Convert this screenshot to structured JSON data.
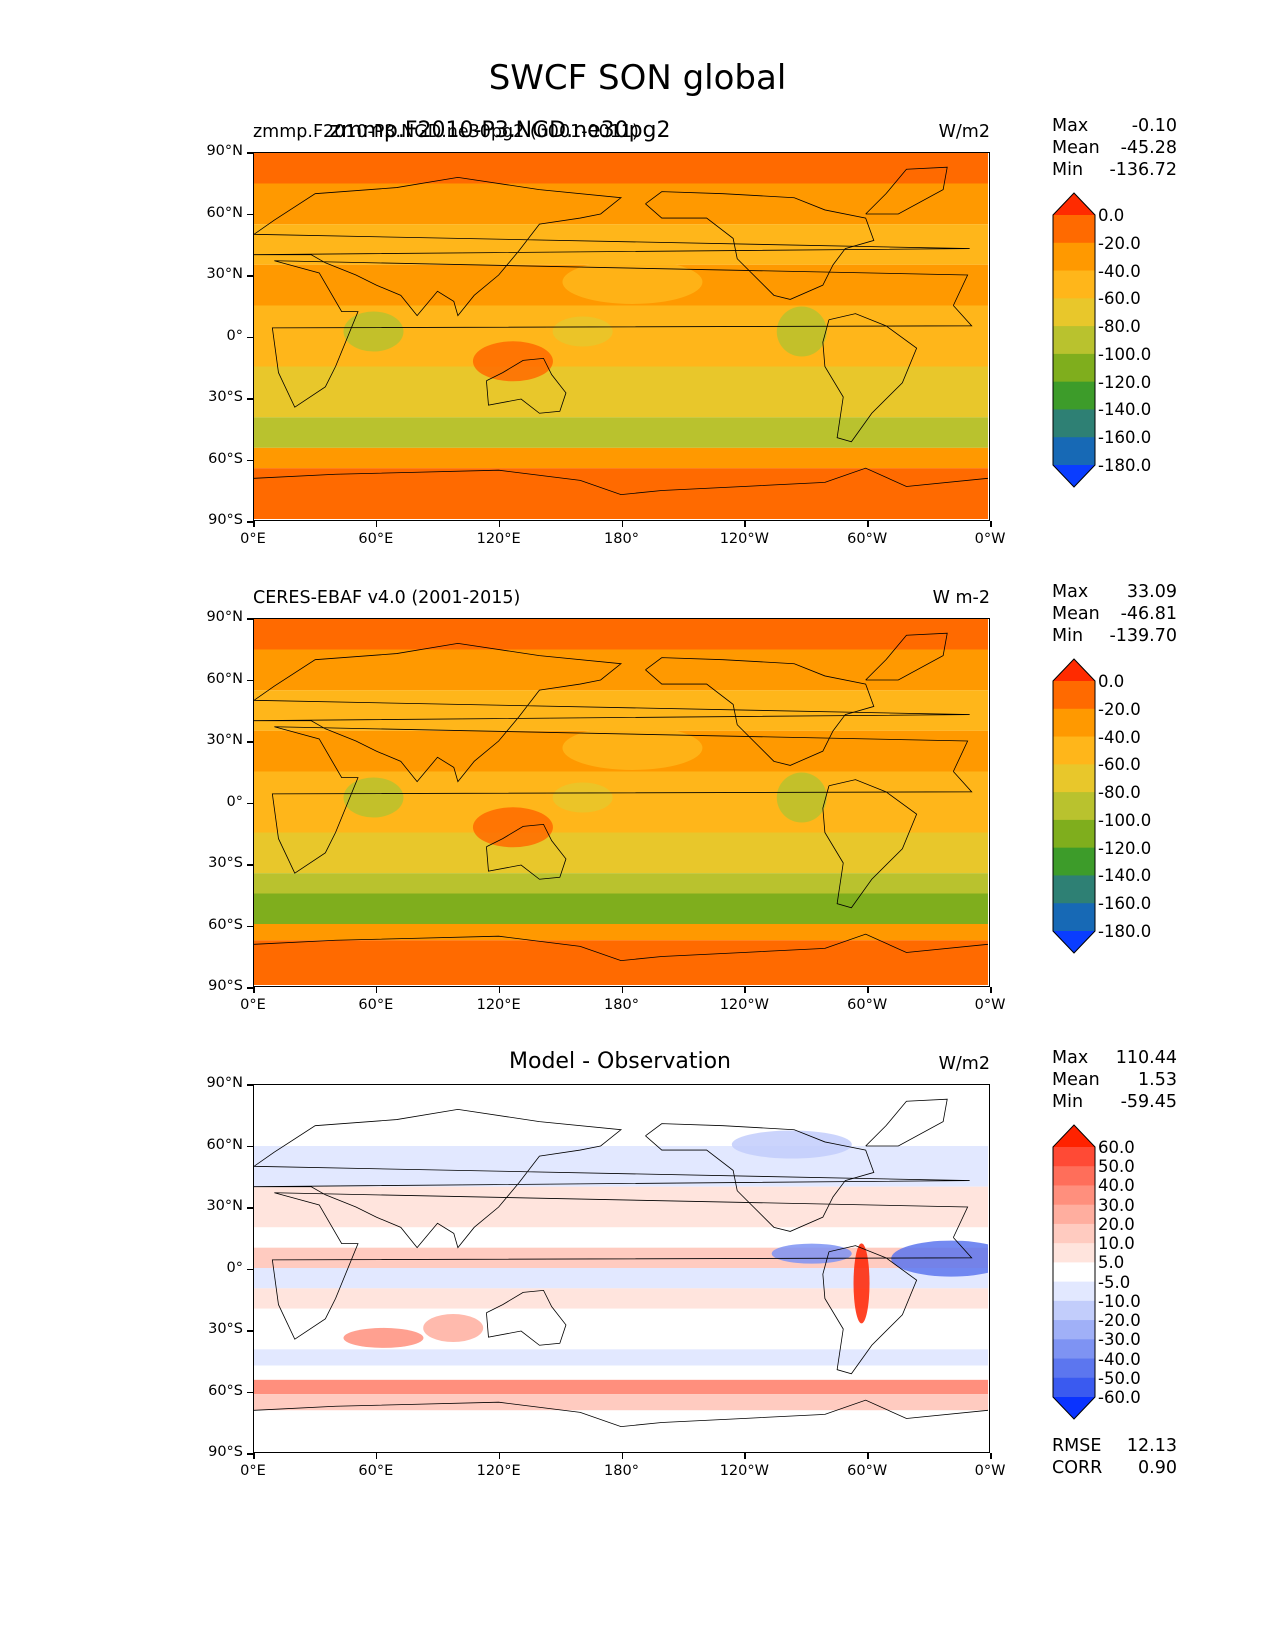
{
  "figure": {
    "title": "SWCF SON global"
  },
  "axes": {
    "lat_ticks": [
      "90°N",
      "60°N",
      "30°N",
      "0°",
      "30°S",
      "60°S",
      "90°S"
    ],
    "lon_ticks": [
      "0°E",
      "60°E",
      "120°E",
      "180°",
      "120°W",
      "60°W",
      "0°W"
    ]
  },
  "panels": [
    {
      "left_title": "zmmp.F2010-P3.NGD.ne30pg2 (0001-0011)",
      "center_title": "zmmp.F2010-P3.NGD.ne30pg2",
      "units": "W/m2",
      "stats": [
        {
          "label": "Max",
          "value": "-0.10"
        },
        {
          "label": "Mean",
          "value": "-45.28"
        },
        {
          "label": "Min",
          "value": "-136.72"
        }
      ],
      "colorbar": {
        "labels": [
          "0.0",
          "-20.0",
          "-40.0",
          "-60.0",
          "-80.0",
          "-100.0",
          "-120.0",
          "-140.0",
          "-160.0",
          "-180.0"
        ],
        "colors": [
          "#ff2b00",
          "#ff6a00",
          "#ff9900",
          "#ffb61a",
          "#e8c72b",
          "#b9c22e",
          "#7fae1d",
          "#3d9c2a",
          "#2e8074",
          "#1769b5",
          "#0a3dff"
        ]
      }
    },
    {
      "left_title": "CERES-EBAF v4.0 (2001-2015)",
      "center_title": "",
      "units": "W m-2",
      "stats": [
        {
          "label": "Max",
          "value": "33.09"
        },
        {
          "label": "Mean",
          "value": "-46.81"
        },
        {
          "label": "Min",
          "value": "-139.70"
        }
      ],
      "colorbar": {
        "labels": [
          "0.0",
          "-20.0",
          "-40.0",
          "-60.0",
          "-80.0",
          "-100.0",
          "-120.0",
          "-140.0",
          "-160.0",
          "-180.0"
        ],
        "colors": [
          "#ff2b00",
          "#ff6a00",
          "#ff9900",
          "#ffb61a",
          "#e8c72b",
          "#b9c22e",
          "#7fae1d",
          "#3d9c2a",
          "#2e8074",
          "#1769b5",
          "#0a3dff"
        ]
      }
    },
    {
      "left_title": "",
      "center_title": "Model - Observation",
      "units": "W/m2",
      "stats": [
        {
          "label": "Max",
          "value": "110.44"
        },
        {
          "label": "Mean",
          "value": "1.53"
        },
        {
          "label": "Min",
          "value": "-59.45"
        }
      ],
      "extra_stats": [
        {
          "label": "RMSE",
          "value": "12.13"
        },
        {
          "label": "CORR",
          "value": "0.90"
        }
      ],
      "colorbar": {
        "labels": [
          "60.0",
          "50.0",
          "40.0",
          "30.0",
          "20.0",
          "10.0",
          "5.0",
          "-5.0",
          "-10.0",
          "-20.0",
          "-30.0",
          "-40.0",
          "-50.0",
          "-60.0"
        ],
        "colors": [
          "#ff2200",
          "#ff4a35",
          "#ff6e5a",
          "#ff8f7d",
          "#ffae9f",
          "#ffcbc0",
          "#ffe4dd",
          "#ffffff",
          "#e2e8ff",
          "#c2cdfb",
          "#a0b0f7",
          "#7e93f3",
          "#5c76ef",
          "#3a5af0",
          "#0a33ff"
        ]
      }
    }
  ]
}
